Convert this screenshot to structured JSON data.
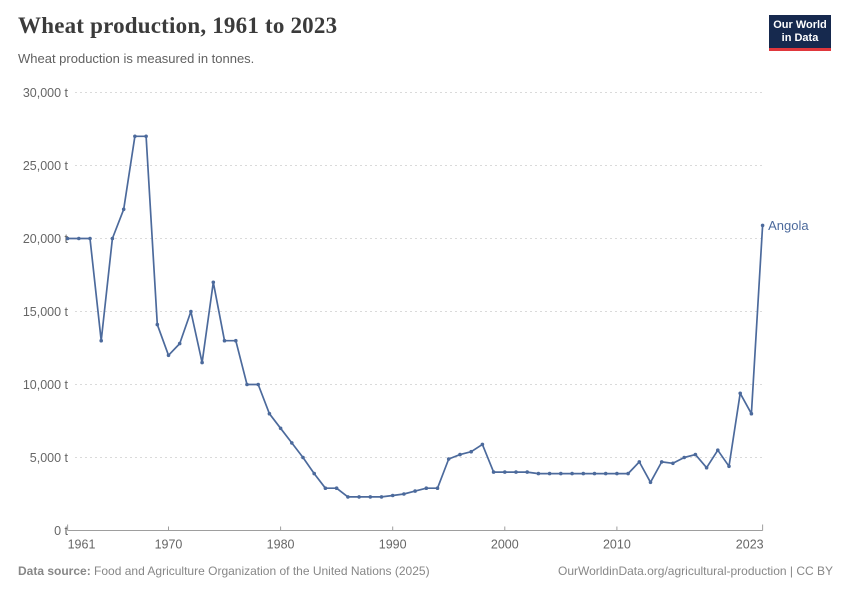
{
  "header": {
    "title": "Wheat production, 1961 to 2023",
    "subtitle": "Wheat production is measured in tonnes."
  },
  "logo": {
    "line1": "Our World",
    "line2": "in Data",
    "bg_color": "#16294e",
    "accent_color": "#e0373c"
  },
  "footer": {
    "source_label": "Data source:",
    "source_text": " Food and Agriculture Organization of the United Nations (2025)",
    "link_text": "OurWorldinData.org/agricultural-production | CC BY"
  },
  "chart_data": {
    "type": "line",
    "title": "Wheat production, 1961 to 2023",
    "unit": "tonnes",
    "xlim": [
      1961,
      2023
    ],
    "ylim": [
      0,
      30000
    ],
    "grid": "horizontal-dashed",
    "legend_position": "end-of-line-label",
    "markers": true,
    "colors": {
      "line": "#4c6a9c",
      "grid": "#dadada",
      "axis": "#9e9e9e",
      "tick_label": "#666666"
    },
    "x_ticks": [
      {
        "label": "1961",
        "year": 1961
      },
      {
        "label": "1970",
        "year": 1970
      },
      {
        "label": "1980",
        "year": 1980
      },
      {
        "label": "1990",
        "year": 1990
      },
      {
        "label": "2000",
        "year": 2000
      },
      {
        "label": "2010",
        "year": 2010
      },
      {
        "label": "2023",
        "year": 2023
      }
    ],
    "y_ticks": [
      {
        "label": "0 t",
        "value": 0
      },
      {
        "label": "5,000 t",
        "value": 5000
      },
      {
        "label": "10,000 t",
        "value": 10000
      },
      {
        "label": "15,000 t",
        "value": 15000
      },
      {
        "label": "20,000 t",
        "value": 20000
      },
      {
        "label": "25,000 t",
        "value": 25000
      },
      {
        "label": "30,000 t",
        "value": 30000
      }
    ],
    "series": [
      {
        "name": "Angola",
        "color": "#4c6a9c",
        "years": [
          1961,
          1962,
          1963,
          1964,
          1965,
          1966,
          1967,
          1968,
          1969,
          1970,
          1971,
          1972,
          1973,
          1974,
          1975,
          1976,
          1977,
          1978,
          1979,
          1980,
          1981,
          1982,
          1983,
          1984,
          1985,
          1986,
          1987,
          1988,
          1989,
          1990,
          1991,
          1992,
          1993,
          1994,
          1995,
          1996,
          1997,
          1998,
          1999,
          2000,
          2001,
          2002,
          2003,
          2004,
          2005,
          2006,
          2007,
          2008,
          2009,
          2010,
          2011,
          2012,
          2013,
          2014,
          2015,
          2016,
          2017,
          2018,
          2019,
          2020,
          2021,
          2022,
          2023
        ],
        "values": [
          20000,
          20000,
          20000,
          13000,
          20000,
          22000,
          27000,
          27000,
          14100,
          12000,
          12800,
          15000,
          11500,
          17000,
          13000,
          13000,
          10000,
          10000,
          8000,
          7000,
          6000,
          5000,
          3900,
          2900,
          2900,
          2300,
          2300,
          2300,
          2300,
          2400,
          2500,
          2700,
          2900,
          2900,
          4900,
          5200,
          5400,
          5900,
          4000,
          4000,
          4000,
          4000,
          3900,
          3900,
          3900,
          3900,
          3900,
          3900,
          3900,
          3900,
          3900,
          4700,
          3300,
          4700,
          4600,
          5000,
          5200,
          4300,
          5500,
          4400,
          9400,
          8000,
          20900
        ]
      }
    ]
  }
}
